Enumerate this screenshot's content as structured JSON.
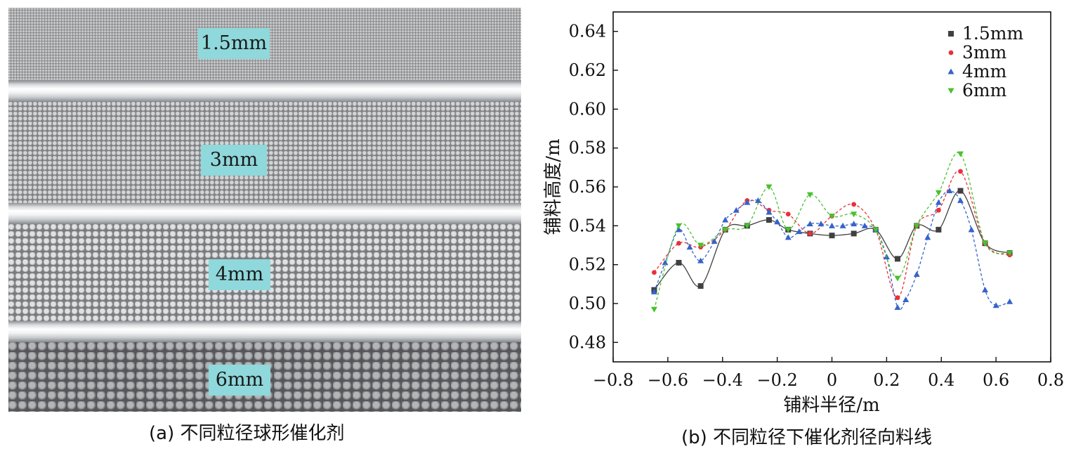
{
  "panel_a": {
    "caption": "(a) 不同粒径球形催化剂",
    "labels": [
      "1.5mm",
      "3mm",
      "4mm",
      "6mm"
    ]
  },
  "panel_b": {
    "caption": "(b) 不同粒径下催化剂径向料线"
  },
  "chart_data": {
    "type": "line",
    "title": "",
    "xlabel": "铺料半径/m",
    "ylabel": "铺料高度/m",
    "xlim": [
      -0.8,
      0.8
    ],
    "ylim": [
      0.47,
      0.65
    ],
    "xticks": [
      -0.8,
      -0.6,
      -0.4,
      -0.2,
      0,
      0.2,
      0.4,
      0.6,
      0.8
    ],
    "xtick_labels": [
      "−0.8",
      "−0.6",
      "−0.4",
      "−0.2",
      "0",
      "0.2",
      "0.4",
      "0.6",
      "0.8"
    ],
    "yticks": [
      0.48,
      0.5,
      0.52,
      0.54,
      0.56,
      0.58,
      0.6,
      0.62,
      0.64
    ],
    "ytick_labels": [
      "0.48",
      "0.50",
      "0.52",
      "0.54",
      "0.56",
      "0.58",
      "0.60",
      "0.62",
      "0.64"
    ],
    "legend_position": "top-right",
    "series": [
      {
        "name": "1.5mm",
        "color": "#404040",
        "marker": "square",
        "dashed": false,
        "x": [
          -0.65,
          -0.56,
          -0.48,
          -0.39,
          -0.31,
          -0.23,
          -0.16,
          -0.08,
          0,
          0.08,
          0.16,
          0.24,
          0.31,
          0.39,
          0.47,
          0.56,
          0.65
        ],
        "y": [
          0.507,
          0.521,
          0.509,
          0.538,
          0.54,
          0.543,
          0.538,
          0.536,
          0.535,
          0.536,
          0.538,
          0.523,
          0.54,
          0.538,
          0.558,
          0.531,
          0.526
        ]
      },
      {
        "name": "3mm",
        "color": "#e8313a",
        "marker": "circle",
        "dashed": true,
        "x": [
          -0.65,
          -0.56,
          -0.48,
          -0.39,
          -0.31,
          -0.23,
          -0.16,
          -0.08,
          0,
          0.08,
          0.16,
          0.24,
          0.31,
          0.39,
          0.47,
          0.56,
          0.65
        ],
        "y": [
          0.516,
          0.531,
          0.529,
          0.538,
          0.553,
          0.548,
          0.546,
          0.536,
          0.545,
          0.551,
          0.538,
          0.503,
          0.54,
          0.548,
          0.568,
          0.531,
          0.525
        ]
      },
      {
        "name": "4mm",
        "color": "#3563c9",
        "marker": "triangle-up",
        "dashed": true,
        "x": [
          -0.65,
          -0.61,
          -0.56,
          -0.52,
          -0.48,
          -0.43,
          -0.39,
          -0.35,
          -0.31,
          -0.27,
          -0.23,
          -0.2,
          -0.16,
          -0.12,
          -0.08,
          -0.04,
          0,
          0.04,
          0.08,
          0.12,
          0.16,
          0.2,
          0.24,
          0.27,
          0.31,
          0.35,
          0.39,
          0.43,
          0.47,
          0.51,
          0.56,
          0.6,
          0.65
        ],
        "y": [
          0.506,
          0.521,
          0.538,
          0.529,
          0.522,
          0.532,
          0.543,
          0.548,
          0.552,
          0.553,
          0.547,
          0.542,
          0.534,
          0.537,
          0.541,
          0.541,
          0.54,
          0.54,
          0.541,
          0.54,
          0.538,
          0.524,
          0.498,
          0.502,
          0.515,
          0.534,
          0.552,
          0.558,
          0.553,
          0.538,
          0.507,
          0.499,
          0.501
        ]
      },
      {
        "name": "6mm",
        "color": "#47c22e",
        "marker": "triangle-down",
        "dashed": true,
        "x": [
          -0.65,
          -0.56,
          -0.48,
          -0.39,
          -0.31,
          -0.23,
          -0.16,
          -0.08,
          0,
          0.08,
          0.16,
          0.24,
          0.31,
          0.39,
          0.47,
          0.56,
          0.65
        ],
        "y": [
          0.497,
          0.54,
          0.53,
          0.538,
          0.54,
          0.56,
          0.538,
          0.556,
          0.545,
          0.546,
          0.538,
          0.513,
          0.54,
          0.557,
          0.577,
          0.531,
          0.526
        ]
      }
    ]
  }
}
